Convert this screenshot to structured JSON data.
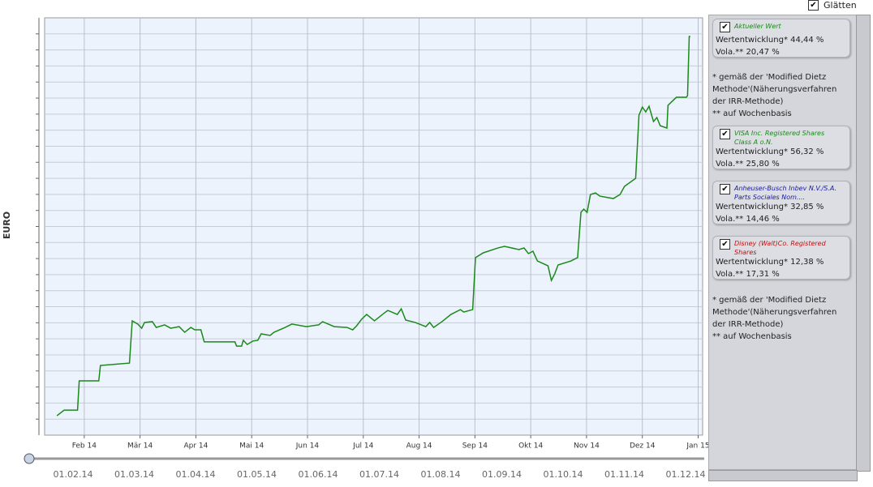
{
  "chart_data": {
    "type": "line",
    "y_label": "EURO",
    "xlim": [
      0.29,
      12.08
    ],
    "xticks": [
      {
        "value": 1,
        "label": "Feb 14"
      },
      {
        "value": 2,
        "label": "Mär 14"
      },
      {
        "value": 3,
        "label": "Apr 14"
      },
      {
        "value": 4,
        "label": "Mai 14"
      },
      {
        "value": 5,
        "label": "Jun 14"
      },
      {
        "value": 6,
        "label": "Jul 14"
      },
      {
        "value": 7,
        "label": "Aug 14"
      },
      {
        "value": 8,
        "label": "Sep 14"
      },
      {
        "value": 9,
        "label": "Okt 14"
      },
      {
        "value": 10,
        "label": "Nov 14"
      },
      {
        "value": 11,
        "label": "Dez 14"
      },
      {
        "value": 12,
        "label": "Jan 15"
      }
    ],
    "ylim": [
      0,
      26
    ],
    "yticks": [
      1,
      2,
      3,
      4,
      5,
      6,
      7,
      8,
      9,
      10,
      11,
      12,
      13,
      14,
      15,
      16,
      17,
      18,
      19,
      20,
      21,
      22,
      23,
      24,
      25
    ],
    "grid": true,
    "series": [
      {
        "color": "#1a8a1a",
        "x": [
          0.51,
          0.64,
          0.88,
          0.91,
          1.26,
          1.29,
          1.81,
          1.86,
          1.96,
          2.03,
          2.08,
          2.22,
          2.29,
          2.44,
          2.55,
          2.7,
          2.8,
          2.91,
          2.98,
          3.09,
          3.15,
          3.7,
          3.73,
          3.82,
          3.85,
          3.92,
          4.02,
          4.11,
          4.17,
          4.33,
          4.4,
          4.6,
          4.72,
          4.98,
          5.2,
          5.27,
          5.48,
          5.71,
          5.81,
          5.88,
          5.97,
          6.06,
          6.2,
          6.38,
          6.44,
          6.61,
          6.68,
          6.76,
          6.93,
          7.12,
          7.19,
          7.26,
          7.41,
          7.57,
          7.74,
          7.8,
          7.96,
          8.01,
          8.15,
          8.41,
          8.53,
          8.79,
          8.88,
          8.96,
          9.04,
          9.12,
          9.31,
          9.37,
          9.43,
          9.49,
          9.72,
          9.84,
          9.9,
          9.95,
          10.01,
          10.07,
          10.16,
          10.24,
          10.48,
          10.6,
          10.68,
          10.88,
          10.94,
          11.0,
          11.06,
          11.12,
          11.2,
          11.26,
          11.32,
          11.44,
          11.46,
          11.61,
          11.79,
          11.81,
          11.84,
          11.86
        ],
        "values": [
          1.21,
          1.56,
          1.56,
          3.38,
          3.38,
          4.34,
          4.49,
          7.12,
          6.92,
          6.66,
          7.02,
          7.07,
          6.71,
          6.87,
          6.66,
          6.76,
          6.41,
          6.71,
          6.56,
          6.56,
          5.81,
          5.81,
          5.55,
          5.55,
          5.91,
          5.65,
          5.86,
          5.91,
          6.31,
          6.21,
          6.41,
          6.71,
          6.92,
          6.76,
          6.87,
          7.07,
          6.76,
          6.71,
          6.56,
          6.81,
          7.22,
          7.52,
          7.12,
          7.62,
          7.77,
          7.52,
          7.87,
          7.17,
          7.02,
          6.76,
          7.02,
          6.71,
          7.07,
          7.52,
          7.82,
          7.67,
          7.82,
          11.06,
          11.36,
          11.66,
          11.76,
          11.56,
          11.66,
          11.31,
          11.46,
          10.85,
          10.55,
          9.64,
          10.05,
          10.6,
          10.85,
          11.06,
          13.88,
          14.08,
          13.88,
          14.99,
          15.09,
          14.89,
          14.74,
          14.99,
          15.5,
          16.0,
          19.94,
          20.44,
          20.14,
          20.49,
          19.54,
          19.79,
          19.28,
          19.13,
          20.55,
          21.05,
          21.05,
          21.15,
          24.84,
          24.84
        ]
      }
    ]
  },
  "header": {
    "smoothing": "Glätten"
  },
  "slider": {
    "labels": [
      "01.02.14",
      "01.03.14",
      "01.04.14",
      "01.05.14",
      "01.06.14",
      "01.07.14",
      "01.08.14",
      "01.09.14",
      "01.10.14",
      "01.11.14",
      "01.12.14"
    ]
  },
  "panel": {
    "current": {
      "title": "Aktueller Wert",
      "performance": "Wertentwicklung* 44,44 %",
      "volatility": "Vola.** 20,47 %"
    },
    "note_1": [
      "* gemäß der 'Modified Dietz",
      "Methode'(Näherungsverfahren",
      "der IRR-Methode)",
      "** auf Wochenbasis"
    ],
    "securities": [
      {
        "title": [
          "VISA Inc. Registered Shares",
          "Class A o.N."
        ],
        "performance": "Wertentwicklung* 56,32 %",
        "volatility": "Vola.** 25,80 %"
      },
      {
        "title": [
          "Anheuser-Busch Inbev N.V./S.A.",
          "Parts Sociales Nom...."
        ],
        "performance": "Wertentwicklung* 32,85 %",
        "volatility": "Vola.** 14,46 %"
      },
      {
        "title": [
          "Disney (Walt)Co. Registered",
          "Shares"
        ],
        "performance": "Wertentwicklung* 12,38 %",
        "volatility": "Vola.** 17,31 %"
      }
    ],
    "note_2": [
      "* gemäß der 'Modified Dietz",
      "Methode'(Näherungsverfahren",
      "der IRR-Methode)",
      "** auf Wochenbasis"
    ]
  }
}
